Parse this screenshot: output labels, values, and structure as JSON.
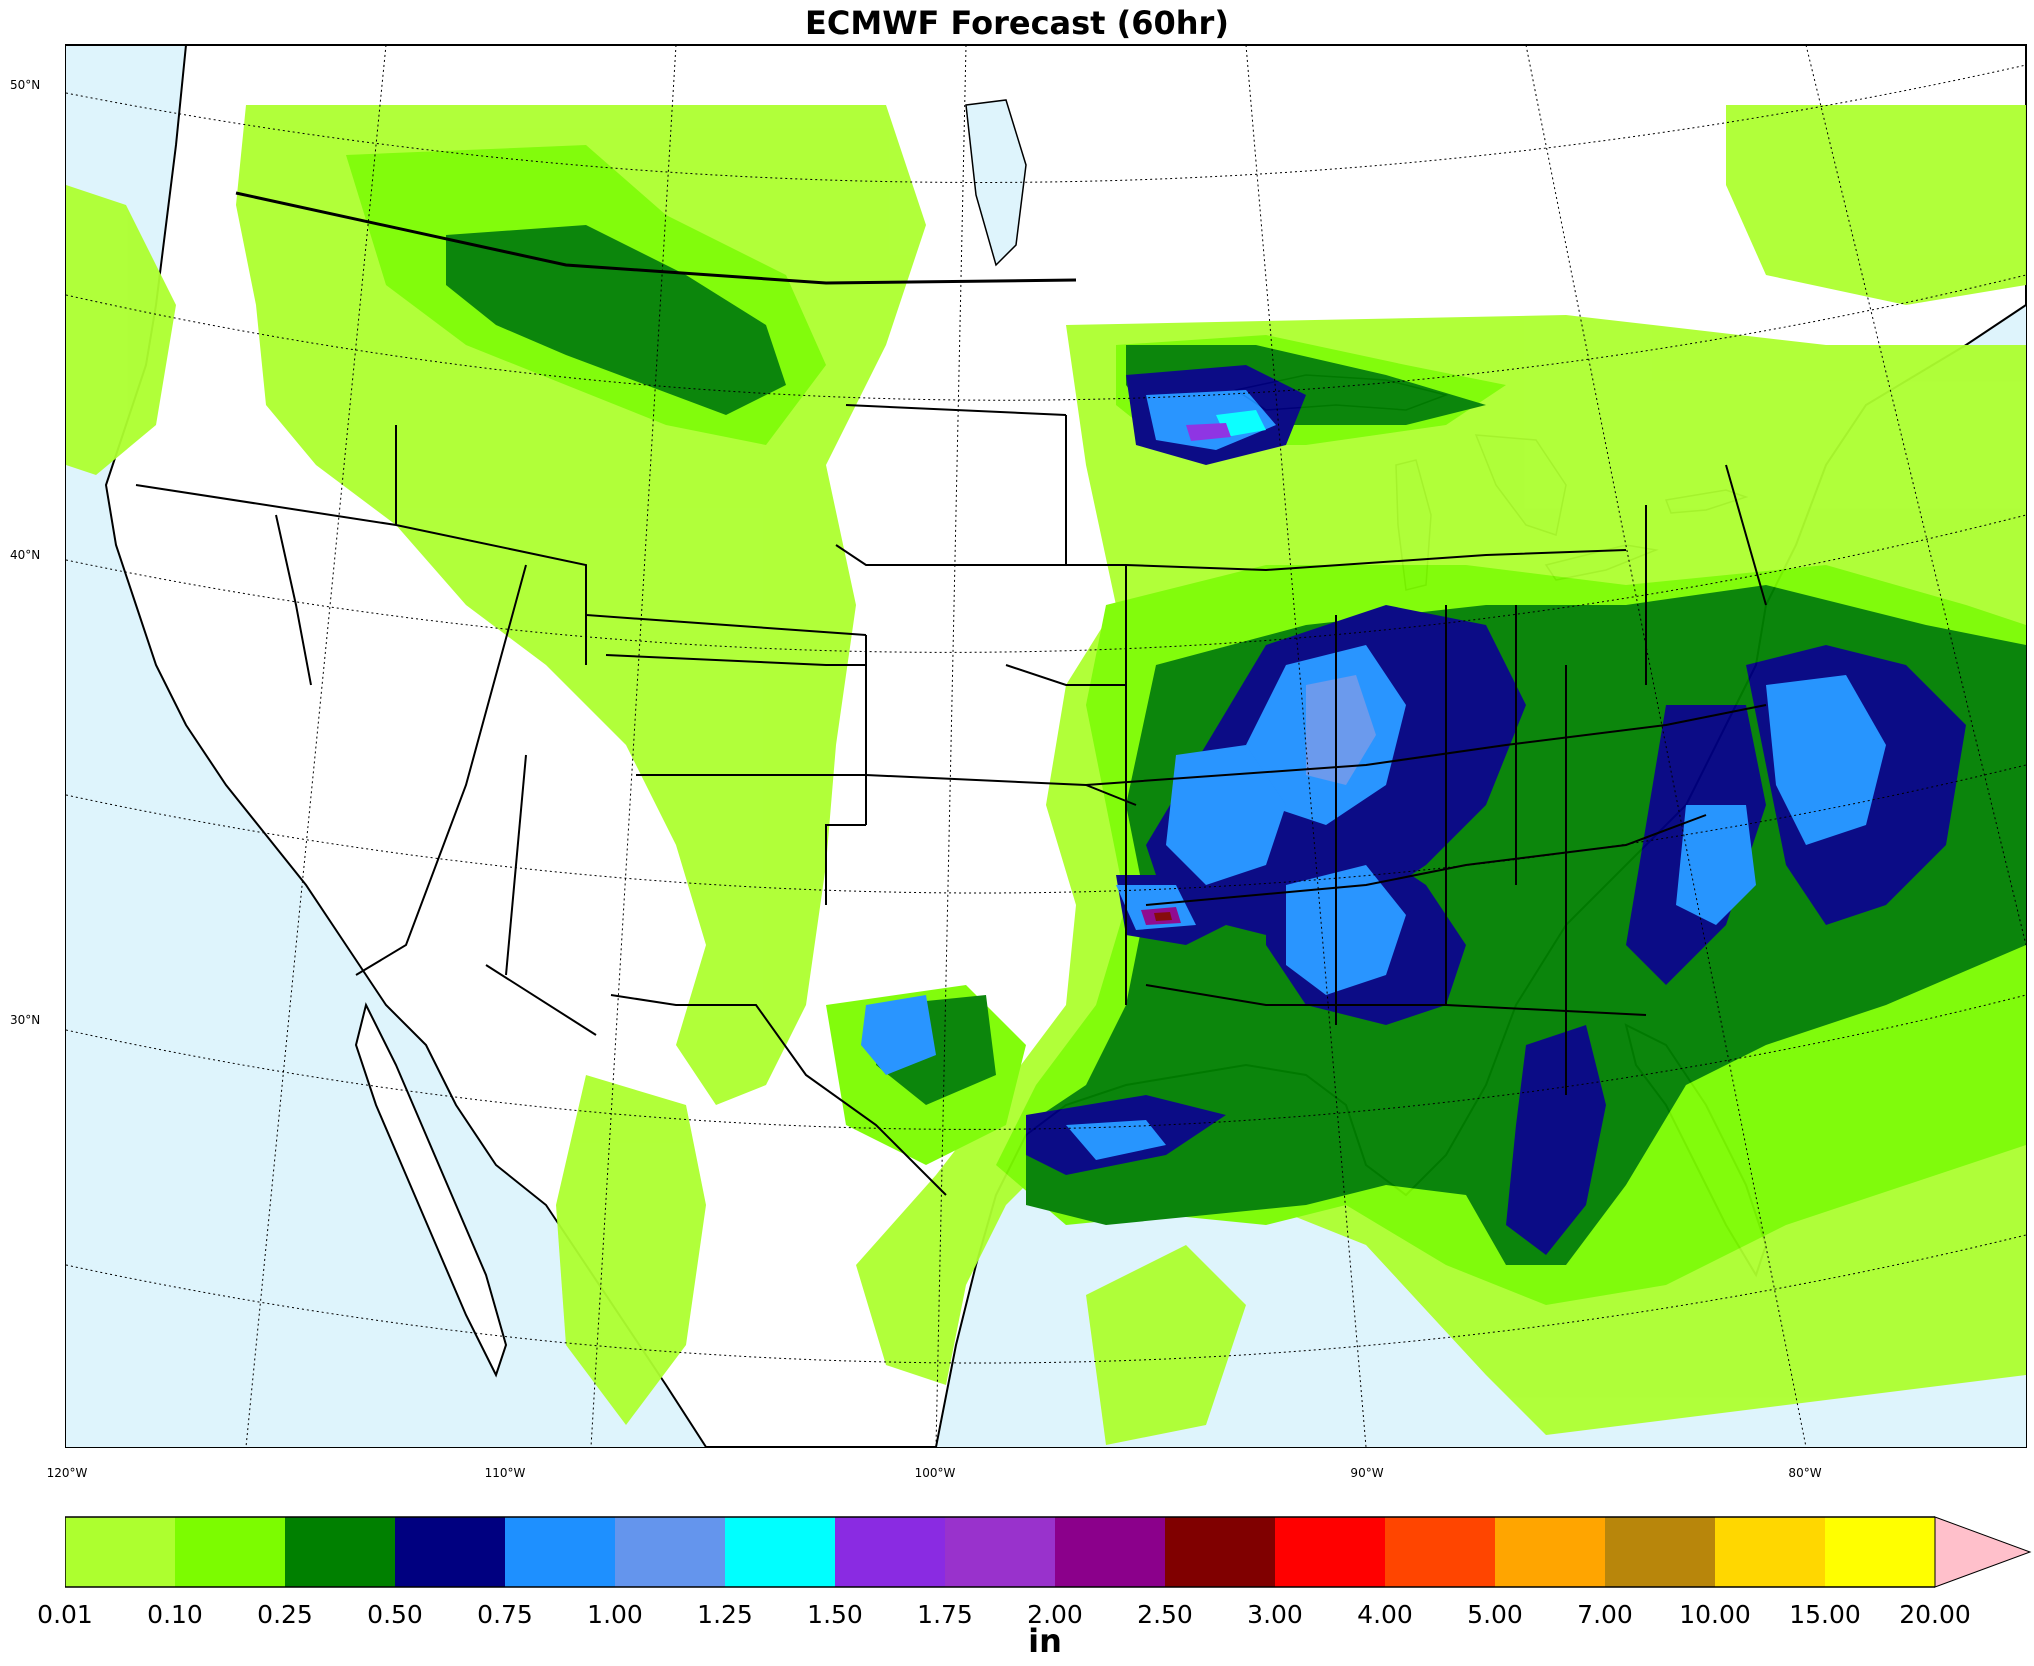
{
  "title": "ECMWF Forecast (60hr)",
  "map": {
    "latitude_labels": [
      "50°N",
      "40°N",
      "30°N"
    ],
    "longitude_labels": [
      "120°W",
      "110°W",
      "100°W",
      "90°W",
      "80°W"
    ]
  },
  "colorbar": {
    "units": "in",
    "extend": "max",
    "tick_labels": [
      "0.01",
      "0.10",
      "0.25",
      "0.50",
      "0.75",
      "1.00",
      "1.25",
      "1.50",
      "1.75",
      "2.00",
      "2.50",
      "3.00",
      "4.00",
      "5.00",
      "7.00",
      "10.00",
      "15.00",
      "20.00"
    ],
    "colors": [
      "#adff2f",
      "#7cfc00",
      "#008000",
      "#000080",
      "#1e90ff",
      "#6495ed",
      "#00ffff",
      "#8a2be2",
      "#9932cc",
      "#8b008b",
      "#800000",
      "#ff0000",
      "#ff4500",
      "#ffa500",
      "#b8860b",
      "#ffd700",
      "#ffff00"
    ],
    "extend_color": "#ffc0cb"
  },
  "colors": {
    "water": "#def4fc",
    "land": "#ffffff",
    "boundaries": "#000000"
  }
}
